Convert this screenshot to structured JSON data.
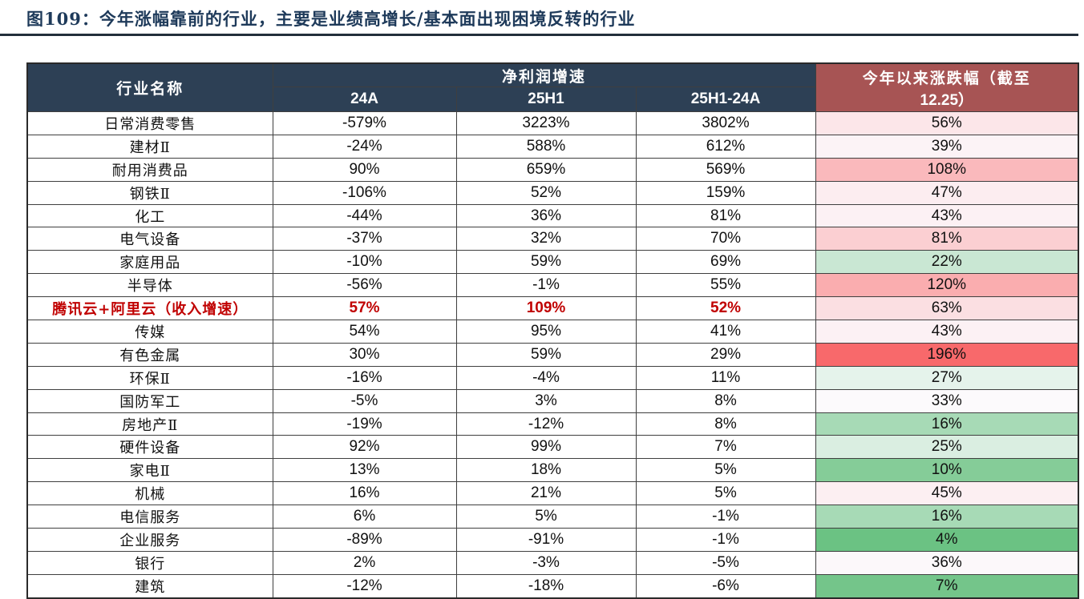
{
  "title": "图109：今年涨幅靠前的行业，主要是业绩高增长/基本面出现困境反转的行业",
  "colors": {
    "title_text": "#1E3A5A",
    "header_navy_bg": "#2D4055",
    "header_red_bg": "#A75454",
    "header_text": "#FFFFFF",
    "emphasis_row_text": "#C00000",
    "scale_max_red": "#F8696B",
    "scale_mid_white": "#FCFCFF",
    "scale_min_green": "#63BE7B"
  },
  "table": {
    "header": {
      "industry": "行业名称",
      "profit_group": "净利润增速",
      "sub_24a": "24A",
      "sub_25h1": "25H1",
      "sub_diff": "25H1-24A",
      "change_line1": "今年以来涨跌幅（截至",
      "change_line2": "12.25）"
    },
    "rows": [
      {
        "name": "日常消费零售",
        "v24a": "-579%",
        "v25h1": "3223%",
        "vdiff": "3802%",
        "ytd": "56%",
        "ytd_bg": "#FCE6E9",
        "emphasis": false
      },
      {
        "name": "建材Ⅱ",
        "v24a": "-24%",
        "v25h1": "588%",
        "vdiff": "612%",
        "ytd": "39%",
        "ytd_bg": "#FCF3F6",
        "emphasis": false
      },
      {
        "name": "耐用消费品",
        "v24a": "90%",
        "v25h1": "659%",
        "vdiff": "569%",
        "ytd": "108%",
        "ytd_bg": "#FAB9BC",
        "emphasis": false
      },
      {
        "name": "钢铁Ⅱ",
        "v24a": "-106%",
        "v25h1": "52%",
        "vdiff": "159%",
        "ytd": "47%",
        "ytd_bg": "#FCEDF0",
        "emphasis": false
      },
      {
        "name": "化工",
        "v24a": "-44%",
        "v25h1": "36%",
        "vdiff": "81%",
        "ytd": "43%",
        "ytd_bg": "#FCF1F4",
        "emphasis": false
      },
      {
        "name": "电气设备",
        "v24a": "-37%",
        "v25h1": "32%",
        "vdiff": "70%",
        "ytd": "81%",
        "ytd_bg": "#FBCFD2",
        "emphasis": false
      },
      {
        "name": "家庭用品",
        "v24a": "-10%",
        "v25h1": "59%",
        "vdiff": "69%",
        "ytd": "22%",
        "ytd_bg": "#C9E7D3",
        "emphasis": false
      },
      {
        "name": "半导体",
        "v24a": "-56%",
        "v25h1": "-1%",
        "vdiff": "55%",
        "ytd": "120%",
        "ytd_bg": "#FAADAF",
        "emphasis": false
      },
      {
        "name": "腾讯云+阿里云（收入增速）",
        "v24a": "57%",
        "v25h1": "109%",
        "vdiff": "52%",
        "ytd": "63%",
        "ytd_bg": "#FBDFE2",
        "emphasis": true
      },
      {
        "name": "传媒",
        "v24a": "54%",
        "v25h1": "95%",
        "vdiff": "41%",
        "ytd": "43%",
        "ytd_bg": "#FCF1F4",
        "emphasis": false
      },
      {
        "name": "有色金属",
        "v24a": "30%",
        "v25h1": "59%",
        "vdiff": "29%",
        "ytd": "196%",
        "ytd_bg": "#F8696B",
        "emphasis": false
      },
      {
        "name": "环保Ⅱ",
        "v24a": "-16%",
        "v25h1": "-4%",
        "vdiff": "11%",
        "ytd": "27%",
        "ytd_bg": "#E5F3EB",
        "emphasis": false
      },
      {
        "name": "国防军工",
        "v24a": "-5%",
        "v25h1": "3%",
        "vdiff": "8%",
        "ytd": "33%",
        "ytd_bg": "#FCFAFC",
        "emphasis": false
      },
      {
        "name": "房地产Ⅱ",
        "v24a": "-19%",
        "v25h1": "-12%",
        "vdiff": "8%",
        "ytd": "16%",
        "ytd_bg": "#A7DAB6",
        "emphasis": false
      },
      {
        "name": "硬件设备",
        "v24a": "92%",
        "v25h1": "99%",
        "vdiff": "7%",
        "ytd": "25%",
        "ytd_bg": "#DAEEE1",
        "emphasis": false
      },
      {
        "name": "家电Ⅱ",
        "v24a": "13%",
        "v25h1": "18%",
        "vdiff": "5%",
        "ytd": "10%",
        "ytd_bg": "#85CC98",
        "emphasis": false
      },
      {
        "name": "机械",
        "v24a": "16%",
        "v25h1": "21%",
        "vdiff": "5%",
        "ytd": "45%",
        "ytd_bg": "#FCEFF2",
        "emphasis": false
      },
      {
        "name": "电信服务",
        "v24a": "6%",
        "v25h1": "5%",
        "vdiff": "-1%",
        "ytd": "16%",
        "ytd_bg": "#A7DAB6",
        "emphasis": false
      },
      {
        "name": "企业服务",
        "v24a": "-89%",
        "v25h1": "-91%",
        "vdiff": "-1%",
        "ytd": "4%",
        "ytd_bg": "#6BC283",
        "emphasis": false
      },
      {
        "name": "银行",
        "v24a": "2%",
        "v25h1": "-3%",
        "vdiff": "-5%",
        "ytd": "36%",
        "ytd_bg": "#FCF8FA",
        "emphasis": false
      },
      {
        "name": "建筑",
        "v24a": "-12%",
        "v25h1": "-18%",
        "vdiff": "-6%",
        "ytd": "7%",
        "ytd_bg": "#74C58A",
        "emphasis": false
      }
    ]
  }
}
